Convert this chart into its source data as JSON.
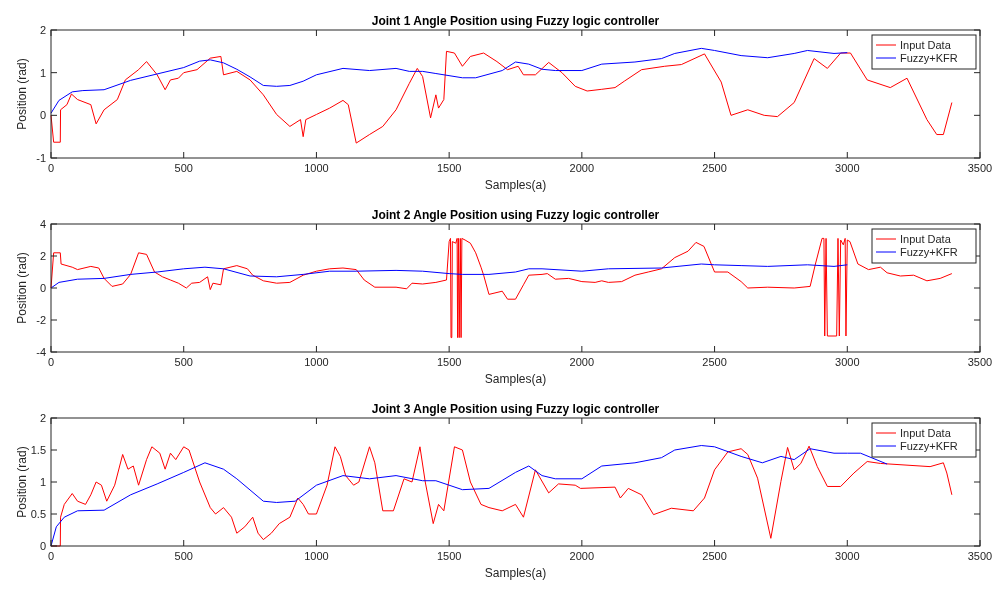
{
  "chart_data": [
    {
      "type": "line",
      "title": "Joint 1 Angle Position using Fuzzy logic controller",
      "xlabel": "Samples(a)",
      "ylabel": "Position (rad)",
      "xlim": [
        0,
        3500
      ],
      "xticks": [
        0,
        500,
        1000,
        1500,
        2000,
        2500,
        3000,
        3500
      ],
      "ylim": [
        -1,
        2
      ],
      "yticks": [
        -1,
        0,
        1,
        2
      ],
      "legend": "top right",
      "series": [
        {
          "name": "Input Data",
          "color": "#ff0000",
          "x": [
            0,
            10,
            35,
            36,
            60,
            77,
            100,
            150,
            170,
            200,
            250,
            280,
            330,
            360,
            400,
            430,
            450,
            480,
            500,
            550,
            600,
            640,
            650,
            700,
            750,
            800,
            850,
            900,
            940,
            950,
            960,
            1000,
            1050,
            1100,
            1120,
            1150,
            1200,
            1250,
            1300,
            1350,
            1380,
            1400,
            1430,
            1450,
            1460,
            1480,
            1490,
            1520,
            1550,
            1580,
            1630,
            1680,
            1720,
            1760,
            1780,
            1825,
            1875,
            1925,
            1975,
            2020,
            2075,
            2125,
            2160,
            2225,
            2312,
            2375,
            2462,
            2525,
            2562,
            2625,
            2687,
            2737,
            2800,
            2875,
            2925,
            2975,
            3012,
            3075,
            3162,
            3225,
            3300,
            3337,
            3362,
            3394
          ],
          "values": [
            0,
            -0.63,
            -0.63,
            0.13,
            0.25,
            0.5,
            0.37,
            0.25,
            -0.2,
            0.13,
            0.37,
            0.83,
            1.07,
            1.26,
            0.95,
            0.6,
            0.83,
            0.87,
            1.0,
            1.07,
            1.34,
            1.38,
            0.95,
            1.03,
            0.83,
            0.48,
            0.02,
            -0.26,
            -0.1,
            -0.5,
            -0.1,
            0.02,
            0.17,
            0.35,
            0.25,
            -0.65,
            -0.45,
            -0.26,
            0.13,
            0.75,
            1.1,
            0.91,
            -0.06,
            0.48,
            0.17,
            0.37,
            1.5,
            1.46,
            1.15,
            1.38,
            1.46,
            1.26,
            1.07,
            1.15,
            0.95,
            0.95,
            1.24,
            1.0,
            0.68,
            0.57,
            0.61,
            0.65,
            0.8,
            1.07,
            1.15,
            1.19,
            1.44,
            0.78,
            0.0,
            0.13,
            0.0,
            -0.03,
            0.3,
            1.33,
            1.1,
            1.46,
            1.46,
            0.83,
            0.65,
            0.87,
            -0.1,
            -0.45,
            -0.45,
            0.3
          ]
        },
        {
          "name": "Fuzzy+KFR",
          "color": "#0000ff",
          "x": [
            0,
            30,
            80,
            120,
            200,
            300,
            400,
            500,
            560,
            600,
            650,
            700,
            750,
            800,
            850,
            900,
            950,
            1000,
            1100,
            1200,
            1300,
            1350,
            1400,
            1450,
            1550,
            1600,
            1700,
            1750,
            1800,
            1850,
            1900,
            2000,
            2075,
            2200,
            2300,
            2350,
            2450,
            2500,
            2600,
            2700,
            2800,
            2850,
            2950,
            3000
          ],
          "values": [
            0.05,
            0.35,
            0.55,
            0.58,
            0.6,
            0.82,
            0.97,
            1.12,
            1.27,
            1.3,
            1.23,
            1.08,
            0.9,
            0.7,
            0.68,
            0.7,
            0.8,
            0.95,
            1.1,
            1.05,
            1.1,
            1.03,
            1.03,
            0.98,
            0.88,
            0.88,
            1.05,
            1.25,
            1.2,
            1.08,
            1.05,
            1.05,
            1.2,
            1.25,
            1.33,
            1.45,
            1.57,
            1.52,
            1.4,
            1.35,
            1.45,
            1.52,
            1.45,
            1.47
          ]
        }
      ]
    },
    {
      "type": "line",
      "title": "Joint 2 Angle Position using Fuzzy logic controller",
      "xlabel": "Samples(a)",
      "ylabel": "Position (rad)",
      "xlim": [
        0,
        3500
      ],
      "xticks": [
        0,
        500,
        1000,
        1500,
        2000,
        2500,
        3000,
        3500
      ],
      "ylim": [
        -4,
        4
      ],
      "yticks": [
        -4,
        -2,
        0,
        2,
        4
      ],
      "legend": "top right",
      "series": [
        {
          "name": "Input Data",
          "color": "#ff0000",
          "x": [
            0,
            10,
            35,
            38,
            80,
            100,
            150,
            180,
            200,
            230,
            270,
            300,
            330,
            360,
            390,
            420,
            450,
            480,
            510,
            530,
            560,
            590,
            600,
            610,
            640,
            650,
            700,
            740,
            760,
            800,
            850,
            900,
            950,
            1000,
            1050,
            1100,
            1150,
            1180,
            1220,
            1300,
            1340,
            1360,
            1400,
            1450,
            1490,
            1500,
            1505,
            1507,
            1510,
            1512,
            1525,
            1530,
            1532,
            1535,
            1538,
            1542,
            1545,
            1548,
            1560,
            1580,
            1600,
            1620,
            1630,
            1650,
            1700,
            1720,
            1750,
            1780,
            1800,
            1850,
            1870,
            1900,
            1950,
            2000,
            2050,
            2075,
            2100,
            2150,
            2200,
            2250,
            2300,
            2350,
            2400,
            2430,
            2460,
            2500,
            2550,
            2600,
            2625,
            2700,
            2800,
            2860,
            2880,
            2905,
            2912,
            2915,
            2920,
            2925,
            2960,
            2965,
            2970,
            2975,
            2985,
            2992,
            2995,
            3000,
            3010,
            3040,
            3080,
            3125,
            3150,
            3200,
            3250,
            3300,
            3350,
            3394
          ],
          "values": [
            0,
            2.2,
            2.2,
            1.5,
            1.3,
            1.15,
            1.35,
            1.25,
            0.6,
            0.1,
            0.25,
            0.85,
            2.2,
            2.1,
            1.0,
            0.7,
            0.5,
            0.3,
            0.0,
            0.3,
            0.35,
            0.7,
            -0.1,
            0.3,
            0.2,
            1.2,
            1.4,
            1.2,
            0.8,
            0.45,
            0.3,
            0.35,
            0.8,
            1.05,
            1.2,
            1.25,
            1.15,
            0.5,
            0.05,
            0.05,
            -0.05,
            0.3,
            0.25,
            0.35,
            0.5,
            2.9,
            3.1,
            -3.1,
            -3.1,
            2.9,
            2.8,
            3.1,
            -3.1,
            3.1,
            -3.1,
            3.1,
            -3.1,
            3.1,
            3.0,
            2.8,
            2.2,
            1.3,
            0.8,
            -0.4,
            -0.2,
            -0.7,
            -0.7,
            0.2,
            0.8,
            0.85,
            0.9,
            0.55,
            0.6,
            0.4,
            0.35,
            0.45,
            0.35,
            0.4,
            0.8,
            1.0,
            1.2,
            1.9,
            2.3,
            2.85,
            2.6,
            1.0,
            1.0,
            0.4,
            0.0,
            0.05,
            0.0,
            0.1,
            1.5,
            3.1,
            3.1,
            -3.0,
            3.1,
            -3.0,
            -3.0,
            3.1,
            -3.0,
            3.0,
            2.7,
            3.1,
            -3.0,
            3.0,
            2.9,
            1.5,
            1.15,
            1.3,
            0.95,
            0.75,
            0.8,
            0.45,
            0.6,
            0.9
          ]
        },
        {
          "name": "Fuzzy+KFR",
          "color": "#0000ff",
          "x": [
            0,
            30,
            100,
            200,
            300,
            400,
            500,
            580,
            650,
            750,
            850,
            950,
            1050,
            1150,
            1300,
            1400,
            1500,
            1550,
            1650,
            1750,
            1800,
            1850,
            2000,
            2100,
            2300,
            2450,
            2500,
            2600,
            2700,
            2850,
            2950,
            3000
          ],
          "values": [
            0.0,
            0.35,
            0.55,
            0.6,
            0.85,
            1.0,
            1.2,
            1.3,
            1.2,
            0.75,
            0.7,
            0.85,
            1.05,
            1.05,
            1.1,
            1.05,
            0.9,
            0.85,
            0.85,
            1.0,
            1.2,
            1.2,
            1.05,
            1.2,
            1.25,
            1.5,
            1.45,
            1.4,
            1.35,
            1.45,
            1.35,
            1.45
          ]
        }
      ]
    },
    {
      "type": "line",
      "title": "Joint 3 Angle Position using Fuzzy logic controller",
      "xlabel": "Samples(a)",
      "ylabel": "Position (rad)",
      "xlim": [
        0,
        3500
      ],
      "xticks": [
        0,
        500,
        1000,
        1500,
        2000,
        2500,
        3000,
        3500
      ],
      "ylim": [
        0,
        2
      ],
      "yticks": [
        0,
        0.5,
        1,
        1.5,
        2
      ],
      "legend": "top right",
      "series": [
        {
          "name": "Input Data",
          "color": "#ff0000",
          "x": [
            0,
            35,
            36,
            50,
            80,
            100,
            130,
            150,
            170,
            190,
            210,
            240,
            270,
            290,
            310,
            330,
            360,
            380,
            410,
            430,
            450,
            470,
            500,
            520,
            560,
            600,
            620,
            650,
            680,
            700,
            730,
            760,
            780,
            800,
            830,
            860,
            900,
            930,
            950,
            970,
            1000,
            1040,
            1070,
            1090,
            1110,
            1140,
            1160,
            1200,
            1220,
            1250,
            1290,
            1330,
            1360,
            1390,
            1410,
            1440,
            1450,
            1460,
            1480,
            1520,
            1550,
            1580,
            1620,
            1650,
            1700,
            1750,
            1780,
            1825,
            1875,
            1912,
            1975,
            1995,
            2125,
            2145,
            2175,
            2225,
            2270,
            2337,
            2420,
            2462,
            2500,
            2550,
            2600,
            2625,
            2662,
            2712,
            2750,
            2775,
            2800,
            2825,
            2856,
            2887,
            2925,
            2975,
            3025,
            3075,
            3125,
            3312,
            3362,
            3375,
            3394
          ],
          "values": [
            0,
            0,
            0.45,
            0.65,
            0.82,
            0.7,
            0.65,
            0.8,
            1.0,
            0.95,
            0.7,
            0.95,
            1.43,
            1.2,
            1.25,
            0.95,
            1.35,
            1.55,
            1.45,
            1.2,
            1.45,
            1.35,
            1.55,
            1.5,
            1.0,
            0.6,
            0.5,
            0.6,
            0.45,
            0.2,
            0.3,
            0.45,
            0.2,
            0.1,
            0.2,
            0.35,
            0.45,
            0.75,
            0.65,
            0.5,
            0.5,
            0.95,
            1.55,
            1.4,
            1.1,
            0.95,
            1.0,
            1.55,
            1.3,
            0.55,
            0.55,
            1.05,
            1.0,
            1.55,
            1.0,
            0.35,
            0.5,
            0.65,
            0.55,
            1.55,
            1.5,
            1.0,
            0.65,
            0.6,
            0.55,
            0.65,
            0.45,
            1.19,
            0.83,
            0.97,
            0.95,
            0.9,
            0.92,
            0.75,
            0.9,
            0.8,
            0.49,
            0.59,
            0.55,
            0.75,
            1.19,
            1.47,
            1.52,
            1.43,
            1.06,
            0.12,
            1.01,
            1.54,
            1.19,
            1.29,
            1.56,
            1.24,
            0.93,
            0.93,
            1.14,
            1.32,
            1.29,
            1.24,
            1.3,
            1.14,
            0.8
          ]
        },
        {
          "name": "Fuzzy+KFR",
          "color": "#0000ff",
          "x": [
            0,
            20,
            50,
            100,
            200,
            300,
            400,
            500,
            580,
            650,
            700,
            800,
            850,
            920,
            1000,
            1100,
            1200,
            1300,
            1400,
            1450,
            1550,
            1650,
            1750,
            1800,
            1850,
            1900,
            2000,
            2075,
            2200,
            2300,
            2350,
            2450,
            2500,
            2600,
            2680,
            2750,
            2800,
            2860,
            2950,
            3000,
            3050,
            3150
          ],
          "values": [
            0,
            0.3,
            0.45,
            0.55,
            0.56,
            0.8,
            0.97,
            1.15,
            1.3,
            1.2,
            1.05,
            0.7,
            0.68,
            0.7,
            0.95,
            1.1,
            1.05,
            1.1,
            1.02,
            1.02,
            0.88,
            0.9,
            1.15,
            1.25,
            1.1,
            1.05,
            1.05,
            1.25,
            1.3,
            1.38,
            1.5,
            1.57,
            1.55,
            1.4,
            1.3,
            1.4,
            1.35,
            1.52,
            1.45,
            1.45,
            1.45,
            1.28
          ]
        }
      ]
    }
  ]
}
